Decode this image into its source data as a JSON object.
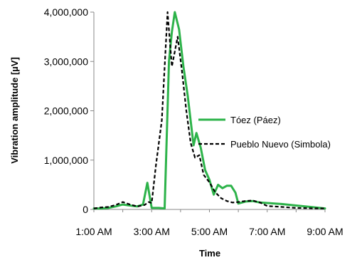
{
  "chart_data": {
    "type": "line",
    "title": "",
    "xlabel": "Time",
    "ylabel": "Vibration amplitude [µV]",
    "x_unit": "hours after midnight",
    "xlim": [
      1,
      9
    ],
    "ylim": [
      0,
      4000000
    ],
    "x_ticks": [
      {
        "value": 1,
        "label": "1:00 AM"
      },
      {
        "value": 3,
        "label": "3:00 AM"
      },
      {
        "value": 5,
        "label": "5:00 AM"
      },
      {
        "value": 7,
        "label": "7:00 AM"
      },
      {
        "value": 9,
        "label": "9:00 AM"
      }
    ],
    "y_ticks": [
      {
        "value": 0,
        "label": "0"
      },
      {
        "value": 1000000,
        "label": "1,000,000"
      },
      {
        "value": 2000000,
        "label": "2,000,000"
      },
      {
        "value": 3000000,
        "label": "3,000,000"
      },
      {
        "value": 4000000,
        "label": "4,000,000"
      }
    ],
    "grid": false,
    "legend_position": "right",
    "series": [
      {
        "name": "Tóez (Páez)",
        "color": "#2db34a",
        "style": "solid",
        "points": [
          [
            1.0,
            20000
          ],
          [
            1.25,
            20000
          ],
          [
            1.5,
            30000
          ],
          [
            1.75,
            60000
          ],
          [
            2.0,
            100000
          ],
          [
            2.25,
            80000
          ],
          [
            2.5,
            60000
          ],
          [
            2.7,
            100000
          ],
          [
            2.85,
            540000
          ],
          [
            3.0,
            30000
          ],
          [
            3.25,
            30000
          ],
          [
            3.45,
            20000
          ],
          [
            3.6,
            3000000
          ],
          [
            3.7,
            3600000
          ],
          [
            3.8,
            4000000
          ],
          [
            3.95,
            3650000
          ],
          [
            4.1,
            2900000
          ],
          [
            4.25,
            2300000
          ],
          [
            4.45,
            1300000
          ],
          [
            4.55,
            1550000
          ],
          [
            4.7,
            1250000
          ],
          [
            4.85,
            800000
          ],
          [
            5.0,
            600000
          ],
          [
            5.15,
            300000
          ],
          [
            5.3,
            500000
          ],
          [
            5.45,
            430000
          ],
          [
            5.6,
            480000
          ],
          [
            5.75,
            480000
          ],
          [
            5.9,
            340000
          ],
          [
            6.0,
            120000
          ],
          [
            6.25,
            160000
          ],
          [
            6.5,
            170000
          ],
          [
            6.75,
            140000
          ],
          [
            7.0,
            130000
          ],
          [
            7.5,
            110000
          ],
          [
            8.0,
            80000
          ],
          [
            8.5,
            50000
          ],
          [
            9.0,
            20000
          ]
        ]
      },
      {
        "name": "Pueblo Nuevo (Simbola)",
        "color": "#000000",
        "style": "dashed",
        "points": [
          [
            1.0,
            20000
          ],
          [
            1.25,
            40000
          ],
          [
            1.5,
            50000
          ],
          [
            1.75,
            90000
          ],
          [
            2.0,
            150000
          ],
          [
            2.25,
            100000
          ],
          [
            2.5,
            60000
          ],
          [
            2.75,
            90000
          ],
          [
            2.9,
            150000
          ],
          [
            3.0,
            130000
          ],
          [
            3.15,
            900000
          ],
          [
            3.35,
            1800000
          ],
          [
            3.55,
            4000000
          ],
          [
            3.7,
            2900000
          ],
          [
            3.8,
            3200000
          ],
          [
            3.9,
            3500000
          ],
          [
            4.05,
            2800000
          ],
          [
            4.2,
            2000000
          ],
          [
            4.35,
            1350000
          ],
          [
            4.5,
            1050000
          ],
          [
            4.65,
            1100000
          ],
          [
            4.8,
            700000
          ],
          [
            5.0,
            550000
          ],
          [
            5.2,
            350000
          ],
          [
            5.4,
            230000
          ],
          [
            5.6,
            170000
          ],
          [
            5.8,
            140000
          ],
          [
            6.0,
            150000
          ],
          [
            6.25,
            170000
          ],
          [
            6.5,
            180000
          ],
          [
            6.75,
            140000
          ],
          [
            7.0,
            70000
          ],
          [
            7.5,
            50000
          ],
          [
            8.0,
            30000
          ],
          [
            8.5,
            25000
          ],
          [
            9.0,
            20000
          ]
        ]
      }
    ]
  }
}
